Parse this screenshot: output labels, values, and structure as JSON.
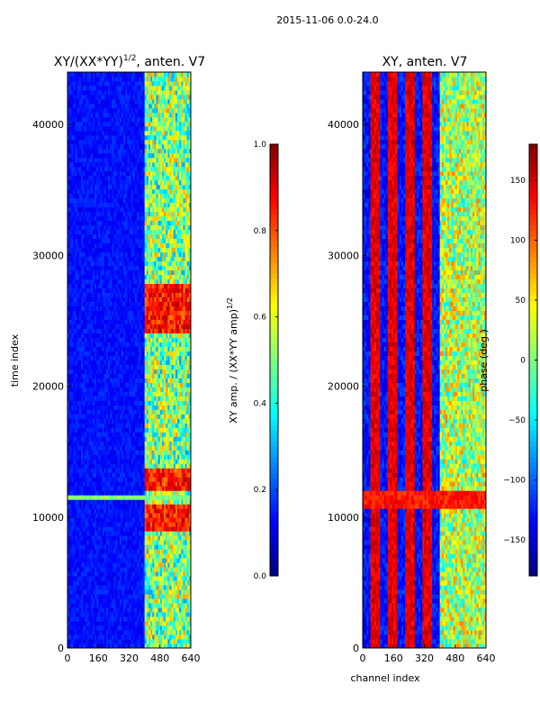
{
  "figure_title": "2015-11-06 0.0-24.0",
  "chart_data": [
    {
      "type": "heatmap",
      "title_main": "XY/(XX*YY)",
      "title_sup": "1/2",
      "title_rest": ", anten. V7",
      "xlabel": "",
      "ylabel": "time index",
      "xlim": [
        0,
        640
      ],
      "ylim": [
        0,
        44000
      ],
      "x_ticks": [
        0,
        160,
        320,
        480,
        640
      ],
      "y_ticks": [
        0,
        10000,
        20000,
        30000,
        40000
      ],
      "colorbar": {
        "label_main": "XY amp. / (XX*YY amp)",
        "label_sup": "1/2",
        "range": [
          0.0,
          1.0
        ],
        "ticks": [
          0.0,
          0.2,
          0.4,
          0.6,
          0.8,
          1.0
        ],
        "tick_labels": [
          "0.0",
          "0.2",
          "0.4",
          "0.6",
          "0.8",
          "1.0"
        ],
        "colormap": "jet"
      },
      "description_values": {
        "background_level": 0.1,
        "band_channels": [
          400,
          640
        ],
        "band_level": 0.5,
        "strong_rows": [
          11200,
          11800
        ]
      }
    },
    {
      "type": "heatmap",
      "title_main": "XY, anten. V7",
      "xlabel": "channel index",
      "ylabel": "",
      "xlim": [
        0,
        640
      ],
      "ylim": [
        0,
        44000
      ],
      "x_ticks": [
        0,
        160,
        320,
        480,
        640
      ],
      "y_ticks": [
        0,
        10000,
        20000,
        30000,
        40000
      ],
      "colorbar": {
        "label_main": "phase (deg.)",
        "range": [
          -180,
          180
        ],
        "ticks": [
          -150,
          -100,
          -50,
          0,
          50,
          100,
          150
        ],
        "tick_labels": [
          "−150",
          "−100",
          "−50",
          "0",
          "50",
          "100",
          "150"
        ],
        "colormap": "jet"
      }
    }
  ]
}
